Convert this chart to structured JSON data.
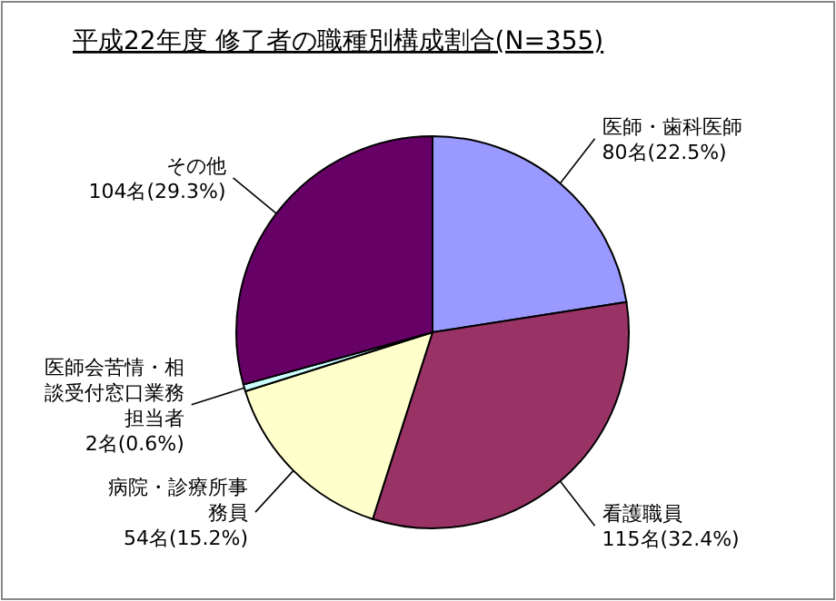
{
  "chart_data": {
    "type": "pie",
    "title": "平成22年度 修了者の職種別構成割合(N=355)",
    "categories": [
      "医師・歯科医師",
      "看護職員",
      "病院・診療所事務員",
      "医師会苦情・相談受付窓口業務担当者",
      "その他"
    ],
    "values": [
      80,
      115,
      54,
      2,
      104
    ],
    "value_labels": [
      "80名(22.5%)",
      "115名(32.4%)",
      "54名(15.2%)",
      "2名(0.6%)",
      "104名(29.3%)"
    ],
    "colors": [
      "#9999ff",
      "#993366",
      "#ffffcc",
      "#ccffff",
      "#660066"
    ]
  }
}
